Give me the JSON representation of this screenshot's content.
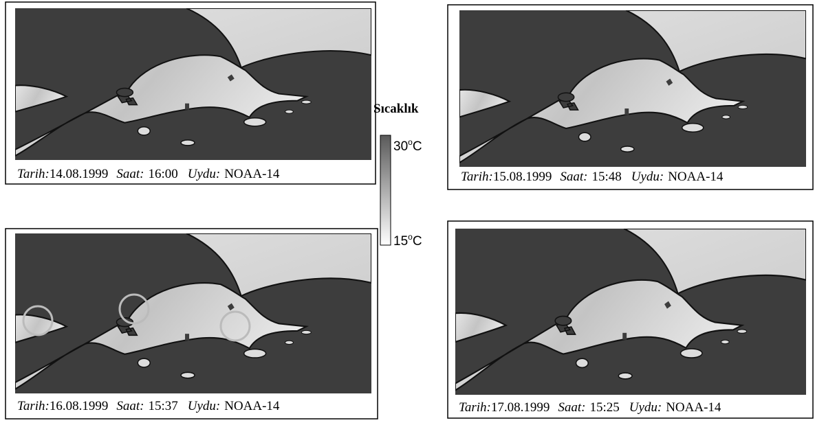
{
  "panels": [
    {
      "caption": {
        "date_label": "Tarih:",
        "date": "14.08.1999",
        "time_label": "Saat:",
        "time": "16:00",
        "satellite_label": "Uydu:",
        "satellite": "NOAA-14"
      }
    },
    {
      "caption": {
        "date_label": "Tarih:",
        "date": "15.08.1999",
        "time_label": "Saat:",
        "time": "15:48",
        "satellite_label": "Uydu:",
        "satellite": "NOAA-14"
      }
    },
    {
      "caption": {
        "date_label": "Tarih:",
        "date": "16.08.1999",
        "time_label": "Saat:",
        "time": "15:37",
        "satellite_label": "Uydu:",
        "satellite": "NOAA-14"
      }
    },
    {
      "caption": {
        "date_label": "Tarih:",
        "date": "17.08.1999",
        "time_label": "Saat:",
        "time": "15:25",
        "satellite_label": "Uydu:",
        "satellite": "NOAA-14"
      }
    }
  ],
  "colorbar": {
    "title": "Sıcaklık",
    "max": {
      "value": "30",
      "degree": "o",
      "unit": "C"
    },
    "min": {
      "value": "15",
      "degree": "o",
      "unit": "C"
    }
  }
}
